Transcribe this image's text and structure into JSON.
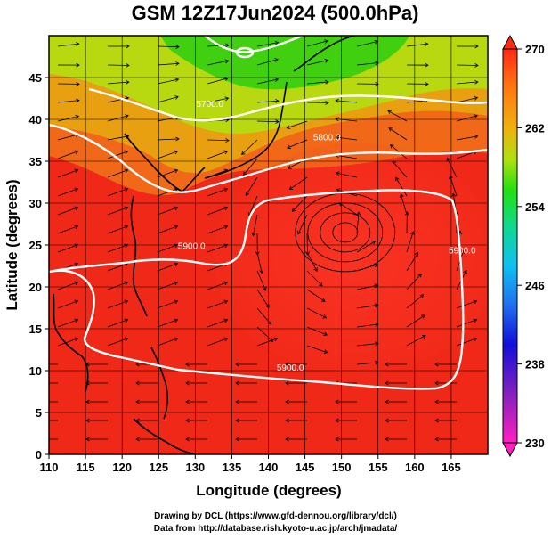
{
  "chart_data": {
    "type": "heatmap",
    "title": "GSM 12Z17Jun2024 (500.0hPa)",
    "xlabel": "Longitude (degrees)",
    "ylabel": "Latitude  (degrees)",
    "xlim": [
      110,
      170
    ],
    "ylim": [
      0,
      50
    ],
    "xticks": [
      110,
      115,
      120,
      125,
      130,
      135,
      140,
      145,
      150,
      155,
      160,
      165
    ],
    "yticks": [
      0,
      5,
      10,
      15,
      20,
      25,
      30,
      35,
      40,
      45
    ],
    "grid": true,
    "colorbar": {
      "ticks": [
        230,
        238,
        246,
        254,
        262,
        270
      ],
      "range": [
        230,
        270
      ]
    },
    "contours": [
      {
        "label": "5900.0",
        "lon": 143,
        "lat": 10
      },
      {
        "label": "5900.0",
        "lon": 129.5,
        "lat": 24.5
      },
      {
        "label": "5900.0",
        "lon": 166.5,
        "lat": 24
      },
      {
        "label": "5800.0",
        "lon": 148,
        "lat": 37.5
      },
      {
        "label": "5700.0",
        "lon": 132,
        "lat": 41.5
      }
    ],
    "vortex_center": {
      "lon": 150.5,
      "lat": 26.5
    }
  },
  "credit": {
    "line1": "Drawing by DCL (https://www.gfd-dennou.org/library/dcl/)",
    "line2": "Data from http://database.rish.kyoto-u.ac.jp/arch/jmadata/"
  },
  "colors": {
    "warm": "#f02818",
    "cold": "#e020c0"
  }
}
